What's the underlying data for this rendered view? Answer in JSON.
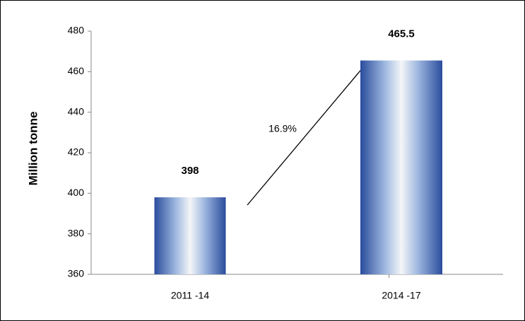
{
  "chart_data": {
    "type": "bar",
    "y_label": "Million tonne",
    "categories": [
      "2011 -14",
      "2014 -17"
    ],
    "values": [
      398,
      465.5
    ],
    "color": "#2a4c9c",
    "ylim": [
      360,
      480
    ],
    "yticks": [
      360,
      380,
      400,
      420,
      440,
      460,
      480
    ],
    "grid": false,
    "annotation": "16.9%"
  }
}
